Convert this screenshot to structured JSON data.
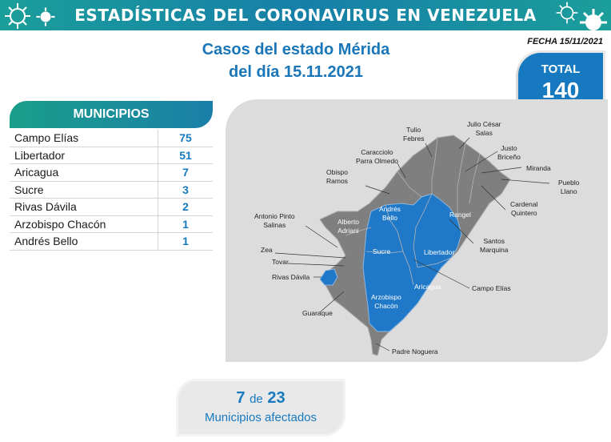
{
  "banner": {
    "title": "ESTADÍSTICAS DEL CORONAVIRUS EN VENEZUELA"
  },
  "fecha": "FECHA 15/11/2021",
  "headline": {
    "line1": "Casos del estado Mérida",
    "line2": "del día 15.11.2021"
  },
  "total": {
    "label": "TOTAL",
    "value": "140"
  },
  "municipios": {
    "header": "MUNICIPIOS",
    "rows": [
      {
        "name": "Campo Elías",
        "value": "75"
      },
      {
        "name": "Libertador",
        "value": "51"
      },
      {
        "name": "Aricagua",
        "value": "7"
      },
      {
        "name": "Sucre",
        "value": "3"
      },
      {
        "name": "Rivas Dávila",
        "value": "2"
      },
      {
        "name": "Arzobispo Chacón",
        "value": "1"
      },
      {
        "name": "Andrés Bello",
        "value": "1"
      }
    ]
  },
  "map": {
    "labels": {
      "tulio_febres": "Tulio\nFebres",
      "julio_cesar_salas": "Julio César\nSalas",
      "caracciolo": "Caracciolo\nParra Olmedo",
      "justo_briceno": "Justo\nBriceño",
      "miranda": "Miranda",
      "obispo_ramos": "Obispo\nRamos",
      "pueblo_llano": "Pueblo\nLlano",
      "cardenal_quintero": "Cardenal\nQuintero",
      "antonio_pinto": "Antonio Pinto\nSalinas",
      "andres_bello": "Andrés\nBello",
      "alberto_adriani": "Alberto\nAdriani",
      "rangel": "Rangel",
      "santos_marquina": "Santos\nMarquina",
      "zea": "Zea",
      "sucre": "Sucre",
      "libertador": "Libertador",
      "tovar": "Tovar",
      "rivas_davila": "Rivas Dávila",
      "campo_elias": "Campo Elías",
      "aricagua": "Aricagua",
      "arzobispo_chacon": "Arzobispo\nChacón",
      "guaraque": "Guaraque",
      "padre_noguera": "Padre Noguera"
    },
    "colors": {
      "affected": "#1f78c8",
      "unaffected": "#7f7f7f",
      "panel": "#dcdcdc"
    }
  },
  "affected": {
    "count": "7",
    "of": "de",
    "total": "23",
    "label": "Municipios afectados"
  },
  "colors": {
    "brand_blue": "#1779bf",
    "banner_teal": "#1b9e9a"
  }
}
